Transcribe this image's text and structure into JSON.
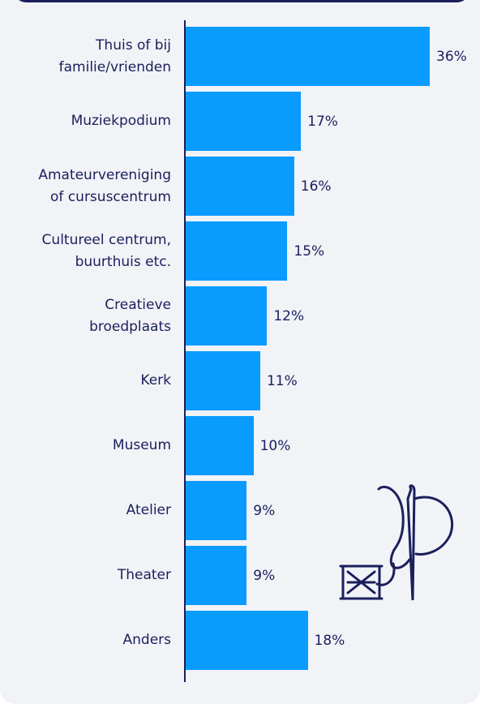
{
  "chart_data": {
    "type": "bar",
    "orientation": "horizontal",
    "categories": [
      "Thuis of bij\nfamilie/vrienden",
      "Muziekpodium",
      "Amateurvereniging\nof cursuscentrum",
      "Cultureel centrum,\nbuurthuis etc.",
      "Creatieve\nbroedplaats",
      "Kerk",
      "Museum",
      "Atelier",
      "Theater",
      "Anders"
    ],
    "values": [
      36,
      17,
      16,
      15,
      12,
      11,
      10,
      9,
      9,
      18
    ],
    "value_labels": [
      "36%",
      "17%",
      "16%",
      "15%",
      "12%",
      "11%",
      "10%",
      "9%",
      "9%",
      "18%"
    ],
    "color": "#0a9bff"
  }
}
